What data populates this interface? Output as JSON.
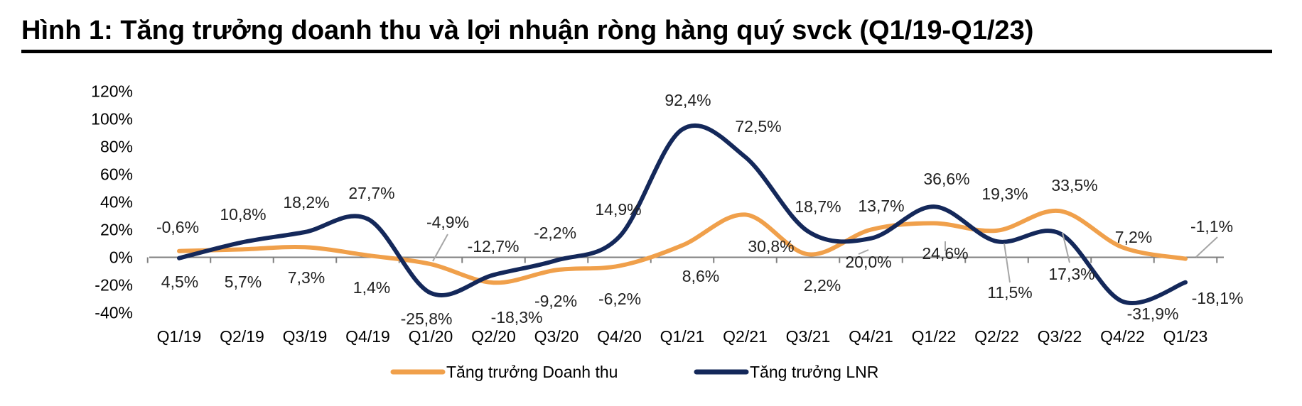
{
  "figure": {
    "title": "Hình 1: Tăng trưởng doanh thu và lợi nhuận ròng hàng quý svck (Q1/19-Q1/23)"
  },
  "chart_data": {
    "type": "line",
    "categories": [
      "Q1/19",
      "Q2/19",
      "Q3/19",
      "Q4/19",
      "Q1/20",
      "Q2/20",
      "Q3/20",
      "Q4/20",
      "Q1/21",
      "Q2/21",
      "Q3/21",
      "Q4/21",
      "Q1/22",
      "Q2/22",
      "Q3/22",
      "Q4/22",
      "Q1/23"
    ],
    "y_ticks": [
      120,
      100,
      80,
      60,
      40,
      20,
      0,
      -20,
      -40
    ],
    "ylim": [
      -40,
      120
    ],
    "tick_suffix": "%",
    "grid": false,
    "legend_position": "bottom",
    "series": [
      {
        "name": "Tăng trưởng Doanh thu",
        "color": "#F0A04B",
        "values": [
          4.5,
          5.7,
          7.3,
          1.4,
          -4.9,
          -18.3,
          -9.2,
          -6.2,
          8.6,
          30.8,
          2.2,
          20.0,
          24.6,
          19.3,
          33.5,
          7.2,
          -1.1
        ],
        "labels": [
          "4,5%",
          "5,7%",
          "7,3%",
          "1,4%",
          "-4,9%",
          "-18,3%",
          "-9,2%",
          "-6,2%",
          "8,6%",
          "30,8%",
          "2,2%",
          "20,0%",
          "24,6%",
          "19,3%",
          "33,5%",
          "7,2%",
          "-1,1%"
        ]
      },
      {
        "name": "Tăng trưởng LNR",
        "color": "#14285A",
        "values": [
          -0.6,
          10.8,
          18.2,
          27.7,
          -25.8,
          -12.7,
          -2.2,
          14.9,
          92.4,
          72.5,
          18.7,
          13.7,
          36.6,
          11.5,
          17.3,
          -31.9,
          -18.1
        ],
        "labels": [
          "-0,6%",
          "10,8%",
          "18,2%",
          "27,7%",
          "-25,8%",
          "-12,7%",
          "-2,2%",
          "14,9%",
          "92,4%",
          "72,5%",
          "18,7%",
          "13,7%",
          "36,6%",
          "11,5%",
          "17,3%",
          "-31,9%",
          "-18,1%"
        ]
      }
    ]
  }
}
